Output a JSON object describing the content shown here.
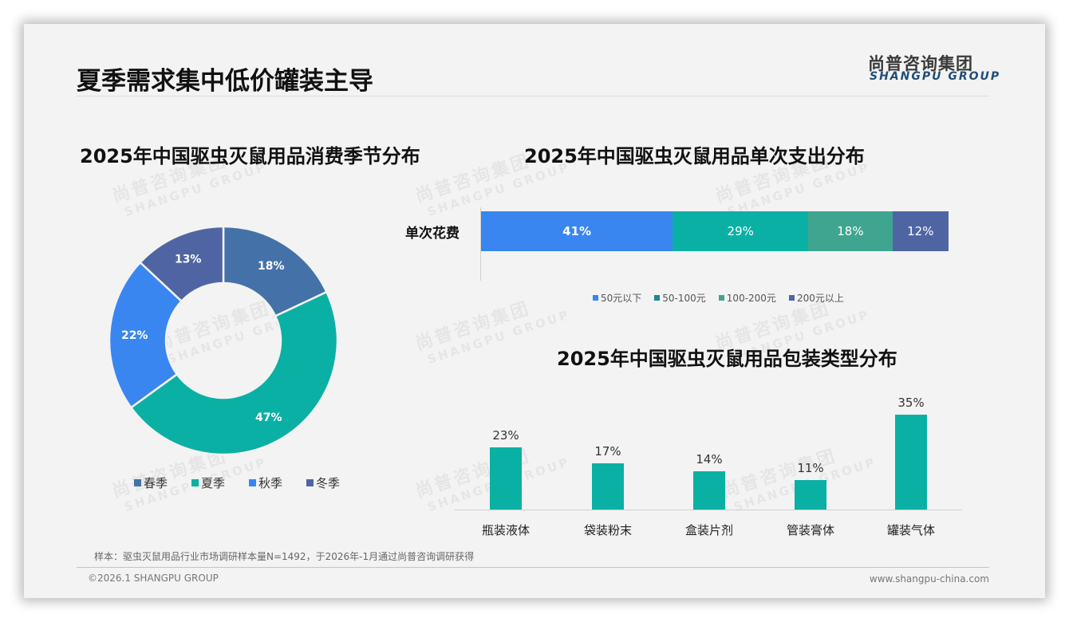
{
  "header": {
    "title": "夏季需求集中低价罐装主导",
    "logo_cn": "尚普咨询集团",
    "logo_en": "SHANGPU GROUP"
  },
  "watermark": {
    "cn": "尚普咨询集团",
    "en": "SHANGPU GROUP"
  },
  "colors": {
    "spring": "#4472a8",
    "summer": "#0bb0a5",
    "autumn": "#3a86f0",
    "winter": "#4f65a3",
    "under50": "#3a86f0",
    "r50_100": "#0bb0a5",
    "r100_200": "#3fa590",
    "over200": "#4f65a3",
    "bar": "#0bb0a5"
  },
  "donut": {
    "title": "2025年中国驱虫灭鼠用品消费季节分布",
    "segments": [
      {
        "label": "春季",
        "value": 18,
        "text": "18%"
      },
      {
        "label": "夏季",
        "value": 47,
        "text": "47%"
      },
      {
        "label": "秋季",
        "value": 22,
        "text": "22%"
      },
      {
        "label": "冬季",
        "value": 13,
        "text": "13%"
      }
    ]
  },
  "stacked": {
    "title": "2025年中国驱虫灭鼠用品单次支出分布",
    "row_label": "单次花费",
    "segments": [
      {
        "label": "50元以下",
        "value": 41,
        "text": "41%"
      },
      {
        "label": "50-100元",
        "value": 29,
        "text": "29%"
      },
      {
        "label": "100-200元",
        "value": 18,
        "text": "18%"
      },
      {
        "label": "200元以上",
        "value": 12,
        "text": "12%"
      }
    ]
  },
  "bars": {
    "title": "2025年中国驱虫灭鼠用品包装类型分布",
    "items": [
      {
        "label": "瓶装液体",
        "value": 23,
        "text": "23%"
      },
      {
        "label": "袋装粉末",
        "value": 17,
        "text": "17%"
      },
      {
        "label": "盒装片剂",
        "value": 14,
        "text": "14%"
      },
      {
        "label": "管装膏体",
        "value": 11,
        "text": "11%"
      },
      {
        "label": "罐装气体",
        "value": 35,
        "text": "35%"
      }
    ]
  },
  "footer": {
    "note": "样本：驱虫灭鼠用品行业市场调研样本量N=1492，于2026年-1月通过尚普咨询调研获得",
    "copyright": "©2026.1 SHANGPU GROUP",
    "website": "www.shangpu-china.com"
  },
  "chart_data": [
    {
      "type": "pie",
      "title": "2025年中国驱虫灭鼠用品消费季节分布",
      "categories": [
        "春季",
        "夏季",
        "秋季",
        "冬季"
      ],
      "values": [
        18,
        47,
        22,
        13
      ],
      "unit": "%",
      "donut": true,
      "legend_position": "bottom"
    },
    {
      "type": "bar",
      "orientation": "horizontal",
      "stacked": true,
      "title": "2025年中国驱虫灭鼠用品单次支出分布",
      "categories": [
        "单次花费"
      ],
      "series": [
        {
          "name": "50元以下",
          "values": [
            41
          ]
        },
        {
          "name": "50-100元",
          "values": [
            29
          ]
        },
        {
          "name": "100-200元",
          "values": [
            18
          ]
        },
        {
          "name": "200元以上",
          "values": [
            12
          ]
        }
      ],
      "unit": "%",
      "legend_position": "bottom"
    },
    {
      "type": "bar",
      "title": "2025年中国驱虫灭鼠用品包装类型分布",
      "categories": [
        "瓶装液体",
        "袋装粉末",
        "盒装片剂",
        "管装膏体",
        "罐装气体"
      ],
      "values": [
        23,
        17,
        14,
        11,
        35
      ],
      "unit": "%",
      "xlabel": "",
      "ylabel": "",
      "grid": false
    }
  ]
}
